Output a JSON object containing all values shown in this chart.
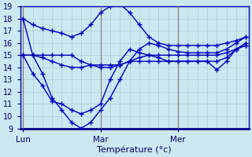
{
  "background_color": "#cce8f0",
  "grid_color": "#aaccdd",
  "line_color": "#0000bb",
  "title": "Température (°c)",
  "ylim": [
    9,
    19
  ],
  "yticks": [
    9,
    10,
    11,
    12,
    13,
    14,
    15,
    16,
    17,
    18,
    19
  ],
  "x_tick_positions": [
    0,
    8,
    16
  ],
  "x_tick_labels": [
    "Lun",
    "Mar",
    "Mer"
  ],
  "vline_positions": [
    0,
    8,
    16
  ],
  "n_points": 24,
  "series": [
    [
      18,
      17.5,
      17.2,
      17.0,
      16.8,
      16.5,
      16.8,
      17.5,
      18.5,
      19.0,
      19.2,
      18.5,
      17.5,
      16.5,
      16.0,
      15.8,
      15.8,
      15.8,
      15.8,
      15.8,
      15.8,
      16.0,
      16.2,
      16.5
    ],
    [
      18,
      15,
      13.5,
      11.5,
      10.5,
      9.5,
      9.0,
      9.5,
      10.5,
      11.5,
      13.0,
      14.5,
      15.5,
      16.0,
      15.8,
      15.5,
      15.3,
      15.2,
      15.2,
      15.2,
      15.2,
      15.5,
      16.0,
      16.5
    ],
    [
      15,
      15,
      15,
      15,
      15,
      15,
      14.5,
      14.2,
      14.0,
      14.0,
      14.2,
      14.5,
      14.8,
      15.0,
      15.0,
      15.0,
      15.0,
      15.0,
      15.0,
      15.0,
      15.0,
      15.2,
      15.5,
      15.8
    ],
    [
      15,
      13.5,
      12.5,
      11.2,
      11.0,
      10.5,
      10.2,
      10.5,
      11.0,
      13.0,
      14.5,
      15.5,
      15.2,
      15.0,
      14.8,
      14.5,
      14.5,
      14.5,
      14.5,
      14.5,
      14.5,
      14.8,
      15.5,
      16.0
    ],
    [
      15,
      15,
      14.8,
      14.5,
      14.2,
      14.0,
      14.0,
      14.2,
      14.2,
      14.2,
      14.2,
      14.5,
      14.5,
      14.5,
      14.5,
      14.5,
      14.5,
      14.5,
      14.5,
      14.5,
      13.8,
      14.5,
      15.5,
      15.8
    ]
  ]
}
